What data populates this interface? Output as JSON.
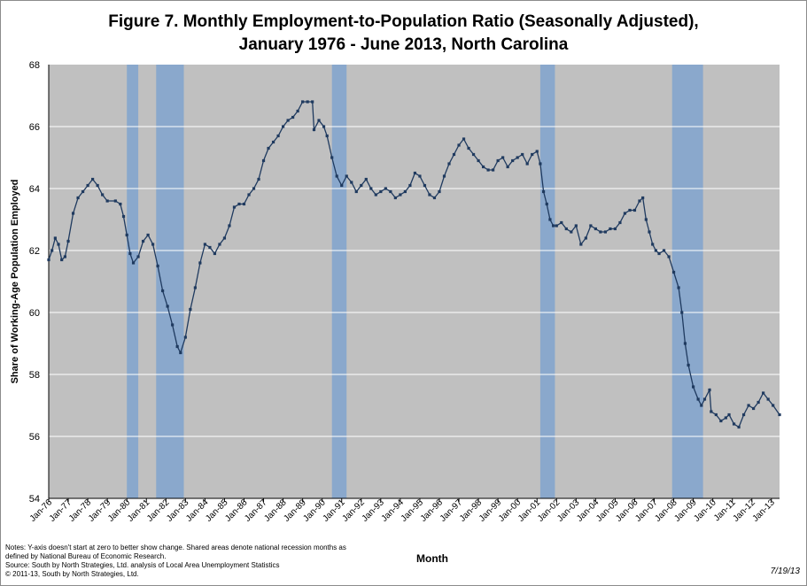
{
  "chart_data": {
    "type": "line",
    "title": "Figure 7. Monthly Employment-to-Population  Ratio (Seasonally Adjusted),",
    "subtitle": "January 1976 - June 2013, North Carolina",
    "xlabel": "Month",
    "ylabel": "Share of  Working-Age Population  Employed",
    "ylim": [
      54,
      68
    ],
    "yticks": [
      54,
      56,
      58,
      60,
      62,
      64,
      66,
      68
    ],
    "xlim": [
      "1976-01",
      "2013-06"
    ],
    "xticks": [
      "Jan-76",
      "Jan-77",
      "Jan-78",
      "Jan-79",
      "Jan-80",
      "Jan-81",
      "Jan-82",
      "Jan-83",
      "Jan-84",
      "Jan-85",
      "Jan-86",
      "Jan-87",
      "Jan-88",
      "Jan-89",
      "Jan-90",
      "Jan-91",
      "Jan-92",
      "Jan-93",
      "Jan-94",
      "Jan-95",
      "Jan-96",
      "Jan-97",
      "Jan-98",
      "Jan-99",
      "Jan-00",
      "Jan-01",
      "Jan-02",
      "Jan-03",
      "Jan-04",
      "Jan-05",
      "Jan-06",
      "Jan-07",
      "Jan-08",
      "Jan-09",
      "Jan-10",
      "Jan-11",
      "Jan-12",
      "Jan-13"
    ],
    "grid": true,
    "recessions": [
      {
        "start": "1980-01",
        "end": "1980-07"
      },
      {
        "start": "1981-07",
        "end": "1982-11"
      },
      {
        "start": "1990-07",
        "end": "1991-03"
      },
      {
        "start": "2001-03",
        "end": "2001-11"
      },
      {
        "start": "2007-12",
        "end": "2009-06"
      }
    ],
    "series": [
      {
        "values": [
          [
            "1976-01",
            61.7
          ],
          [
            "1976-03",
            62.0
          ],
          [
            "1976-05",
            62.4
          ],
          [
            "1976-07",
            62.2
          ],
          [
            "1976-09",
            61.7
          ],
          [
            "1976-11",
            61.8
          ],
          [
            "1977-01",
            62.3
          ],
          [
            "1977-04",
            63.2
          ],
          [
            "1977-07",
            63.7
          ],
          [
            "1977-10",
            63.9
          ],
          [
            "1978-01",
            64.1
          ],
          [
            "1978-04",
            64.3
          ],
          [
            "1978-07",
            64.1
          ],
          [
            "1978-10",
            63.8
          ],
          [
            "1979-01",
            63.6
          ],
          [
            "1979-06",
            63.6
          ],
          [
            "1979-09",
            63.5
          ],
          [
            "1979-11",
            63.1
          ],
          [
            "1980-01",
            62.5
          ],
          [
            "1980-03",
            61.9
          ],
          [
            "1980-05",
            61.6
          ],
          [
            "1980-08",
            61.8
          ],
          [
            "1980-11",
            62.3
          ],
          [
            "1981-02",
            62.5
          ],
          [
            "1981-05",
            62.2
          ],
          [
            "1981-08",
            61.5
          ],
          [
            "1981-11",
            60.7
          ],
          [
            "1982-02",
            60.2
          ],
          [
            "1982-05",
            59.6
          ],
          [
            "1982-08",
            58.9
          ],
          [
            "1982-10",
            58.7
          ],
          [
            "1983-01",
            59.2
          ],
          [
            "1983-04",
            60.1
          ],
          [
            "1983-07",
            60.8
          ],
          [
            "1983-10",
            61.6
          ],
          [
            "1984-01",
            62.2
          ],
          [
            "1984-04",
            62.1
          ],
          [
            "1984-07",
            61.9
          ],
          [
            "1984-10",
            62.2
          ],
          [
            "1985-01",
            62.4
          ],
          [
            "1985-04",
            62.8
          ],
          [
            "1985-07",
            63.4
          ],
          [
            "1985-10",
            63.5
          ],
          [
            "1986-01",
            63.5
          ],
          [
            "1986-04",
            63.8
          ],
          [
            "1986-07",
            64.0
          ],
          [
            "1986-10",
            64.3
          ],
          [
            "1987-01",
            64.9
          ],
          [
            "1987-04",
            65.3
          ],
          [
            "1987-07",
            65.5
          ],
          [
            "1987-10",
            65.7
          ],
          [
            "1988-01",
            66.0
          ],
          [
            "1988-04",
            66.2
          ],
          [
            "1988-07",
            66.3
          ],
          [
            "1988-10",
            66.5
          ],
          [
            "1989-01",
            66.8
          ],
          [
            "1989-04",
            66.8
          ],
          [
            "1989-07",
            66.8
          ],
          [
            "1989-08",
            65.9
          ],
          [
            "1989-11",
            66.2
          ],
          [
            "1990-02",
            66.0
          ],
          [
            "1990-04",
            65.7
          ],
          [
            "1990-07",
            65.0
          ],
          [
            "1990-10",
            64.4
          ],
          [
            "1991-01",
            64.1
          ],
          [
            "1991-04",
            64.4
          ],
          [
            "1991-07",
            64.2
          ],
          [
            "1991-10",
            63.9
          ],
          [
            "1992-01",
            64.1
          ],
          [
            "1992-04",
            64.3
          ],
          [
            "1992-07",
            64.0
          ],
          [
            "1992-10",
            63.8
          ],
          [
            "1993-01",
            63.9
          ],
          [
            "1993-04",
            64.0
          ],
          [
            "1993-07",
            63.9
          ],
          [
            "1993-10",
            63.7
          ],
          [
            "1994-01",
            63.8
          ],
          [
            "1994-04",
            63.9
          ],
          [
            "1994-07",
            64.1
          ],
          [
            "1994-10",
            64.5
          ],
          [
            "1995-01",
            64.4
          ],
          [
            "1995-04",
            64.1
          ],
          [
            "1995-07",
            63.8
          ],
          [
            "1995-10",
            63.7
          ],
          [
            "1996-01",
            63.9
          ],
          [
            "1996-04",
            64.4
          ],
          [
            "1996-07",
            64.8
          ],
          [
            "1996-10",
            65.1
          ],
          [
            "1997-01",
            65.4
          ],
          [
            "1997-04",
            65.6
          ],
          [
            "1997-07",
            65.3
          ],
          [
            "1997-10",
            65.1
          ],
          [
            "1998-01",
            64.9
          ],
          [
            "1998-04",
            64.7
          ],
          [
            "1998-07",
            64.6
          ],
          [
            "1998-10",
            64.6
          ],
          [
            "1999-01",
            64.9
          ],
          [
            "1999-04",
            65.0
          ],
          [
            "1999-07",
            64.7
          ],
          [
            "1999-10",
            64.9
          ],
          [
            "2000-01",
            65.0
          ],
          [
            "2000-04",
            65.1
          ],
          [
            "2000-07",
            64.8
          ],
          [
            "2000-10",
            65.1
          ],
          [
            "2001-01",
            65.2
          ],
          [
            "2001-03",
            64.8
          ],
          [
            "2001-05",
            63.9
          ],
          [
            "2001-07",
            63.5
          ],
          [
            "2001-09",
            63.0
          ],
          [
            "2001-11",
            62.8
          ],
          [
            "2002-01",
            62.8
          ],
          [
            "2002-04",
            62.9
          ],
          [
            "2002-07",
            62.7
          ],
          [
            "2002-10",
            62.6
          ],
          [
            "2003-01",
            62.8
          ],
          [
            "2003-04",
            62.2
          ],
          [
            "2003-07",
            62.4
          ],
          [
            "2003-10",
            62.8
          ],
          [
            "2004-01",
            62.7
          ],
          [
            "2004-04",
            62.6
          ],
          [
            "2004-07",
            62.6
          ],
          [
            "2004-10",
            62.7
          ],
          [
            "2005-01",
            62.7
          ],
          [
            "2005-04",
            62.9
          ],
          [
            "2005-07",
            63.2
          ],
          [
            "2005-10",
            63.3
          ],
          [
            "2006-01",
            63.3
          ],
          [
            "2006-04",
            63.6
          ],
          [
            "2006-06",
            63.7
          ],
          [
            "2006-08",
            63.0
          ],
          [
            "2006-10",
            62.6
          ],
          [
            "2006-12",
            62.2
          ],
          [
            "2007-02",
            62.0
          ],
          [
            "2007-04",
            61.9
          ],
          [
            "2007-07",
            62.0
          ],
          [
            "2007-10",
            61.8
          ],
          [
            "2008-01",
            61.3
          ],
          [
            "2008-04",
            60.8
          ],
          [
            "2008-06",
            60.0
          ],
          [
            "2008-08",
            59.0
          ],
          [
            "2008-10",
            58.3
          ],
          [
            "2009-01",
            57.6
          ],
          [
            "2009-04",
            57.2
          ],
          [
            "2009-06",
            57.0
          ],
          [
            "2009-08",
            57.2
          ],
          [
            "2009-11",
            57.5
          ],
          [
            "2009-12",
            56.8
          ],
          [
            "2010-03",
            56.7
          ],
          [
            "2010-06",
            56.5
          ],
          [
            "2010-09",
            56.6
          ],
          [
            "2010-11",
            56.7
          ],
          [
            "2011-02",
            56.4
          ],
          [
            "2011-05",
            56.3
          ],
          [
            "2011-08",
            56.7
          ],
          [
            "2011-11",
            57.0
          ],
          [
            "2012-02",
            56.9
          ],
          [
            "2012-05",
            57.1
          ],
          [
            "2012-08",
            57.4
          ],
          [
            "2012-11",
            57.2
          ],
          [
            "2013-02",
            57.0
          ],
          [
            "2013-06",
            56.7
          ]
        ]
      }
    ],
    "colors": {
      "plot_bg": "#c0c0c0",
      "recession": "#8aa8cc",
      "line": "#1f3a5f",
      "grid": "#ffffff"
    }
  },
  "notes": [
    "Notes: Y-axis doesn't start at zero to better show change. Shared areas denote national recession months as",
    "defined by National Bureau of Economic Research.",
    "Source:  South by North Strategies, Ltd. analysis of Local Area Unemployment Statistics",
    "© 2011-13, South by North Strategies, Ltd."
  ],
  "date_stamp": "7/19/13"
}
